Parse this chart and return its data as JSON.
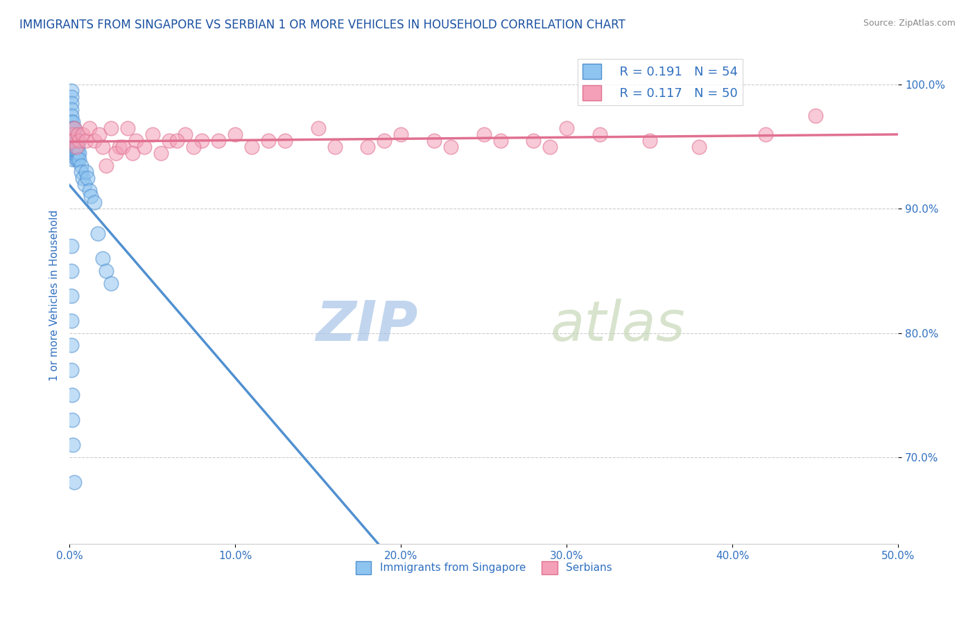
{
  "title": "IMMIGRANTS FROM SINGAPORE VS SERBIAN 1 OR MORE VEHICLES IN HOUSEHOLD CORRELATION CHART",
  "source_text": "Source: ZipAtlas.com",
  "ylabel": "1 or more Vehicles in Household",
  "xlim": [
    0.0,
    50.0
  ],
  "ylim": [
    63.0,
    103.0
  ],
  "xticks": [
    0.0,
    10.0,
    20.0,
    30.0,
    40.0,
    50.0
  ],
  "yticks": [
    70.0,
    80.0,
    90.0,
    100.0
  ],
  "ytick_labels": [
    "70.0%",
    "80.0%",
    "90.0%",
    "100.0%"
  ],
  "xtick_labels": [
    "0.0%",
    "10.0%",
    "20.0%",
    "30.0%",
    "40.0%",
    "50.0%"
  ],
  "legend_labels": [
    "Immigrants from Singapore",
    "Serbians"
  ],
  "legend_r1": "R = 0.191",
  "legend_n1": "N = 54",
  "legend_r2": "R = 0.117",
  "legend_n2": "N = 50",
  "color_blue": "#8EC4F0",
  "color_pink": "#F4A0B8",
  "color_blue_dark": "#5090D0",
  "color_pink_dark": "#E07090",
  "watermark_color": "#C8D8F0",
  "title_color": "#1A50A0",
  "axis_label_color": "#3070C0",
  "tick_label_color": "#3070C0",
  "singapore_x": [
    0.1,
    0.1,
    0.1,
    0.1,
    0.1,
    0.1,
    0.1,
    0.1,
    0.1,
    0.1,
    0.2,
    0.2,
    0.2,
    0.2,
    0.2,
    0.2,
    0.2,
    0.3,
    0.3,
    0.3,
    0.3,
    0.3,
    0.4,
    0.4,
    0.4,
    0.5,
    0.5,
    0.5,
    0.5,
    0.6,
    0.6,
    0.7,
    0.7,
    0.8,
    0.9,
    1.0,
    1.1,
    1.2,
    1.3,
    1.5,
    1.7,
    2.0,
    2.2,
    2.5,
    0.1,
    0.1,
    0.1,
    0.1,
    0.1,
    0.1,
    0.15,
    0.15,
    0.2,
    0.3
  ],
  "singapore_y": [
    99.5,
    99.0,
    98.5,
    98.0,
    97.5,
    97.0,
    96.5,
    96.0,
    95.5,
    95.0,
    97.0,
    96.5,
    96.0,
    95.5,
    95.0,
    94.5,
    94.0,
    96.5,
    96.0,
    95.5,
    95.0,
    94.5,
    95.0,
    94.5,
    94.0,
    95.5,
    95.0,
    94.5,
    94.0,
    94.5,
    94.0,
    93.5,
    93.0,
    92.5,
    92.0,
    93.0,
    92.5,
    91.5,
    91.0,
    90.5,
    88.0,
    86.0,
    85.0,
    84.0,
    87.0,
    85.0,
    83.0,
    81.0,
    79.0,
    77.0,
    75.0,
    73.0,
    71.0,
    68.0
  ],
  "serbian_x": [
    0.1,
    0.2,
    0.3,
    0.4,
    0.5,
    0.6,
    0.8,
    1.0,
    1.2,
    1.5,
    1.8,
    2.0,
    2.5,
    3.0,
    3.5,
    4.0,
    5.0,
    6.0,
    7.0,
    8.0,
    10.0,
    12.0,
    15.0,
    18.0,
    20.0,
    22.0,
    25.0,
    28.0,
    30.0,
    35.0,
    2.2,
    2.8,
    3.2,
    3.8,
    4.5,
    5.5,
    6.5,
    7.5,
    9.0,
    11.0,
    13.0,
    16.0,
    19.0,
    23.0,
    26.0,
    29.0,
    32.0,
    38.0,
    42.0,
    45.0
  ],
  "serbian_y": [
    96.0,
    95.5,
    96.5,
    95.0,
    96.0,
    95.5,
    96.0,
    95.5,
    96.5,
    95.5,
    96.0,
    95.0,
    96.5,
    95.0,
    96.5,
    95.5,
    96.0,
    95.5,
    96.0,
    95.5,
    96.0,
    95.5,
    96.5,
    95.0,
    96.0,
    95.5,
    96.0,
    95.5,
    96.5,
    95.5,
    93.5,
    94.5,
    95.0,
    94.5,
    95.0,
    94.5,
    95.5,
    95.0,
    95.5,
    95.0,
    95.5,
    95.0,
    95.5,
    95.0,
    95.5,
    95.0,
    96.0,
    95.0,
    96.0,
    97.5
  ]
}
